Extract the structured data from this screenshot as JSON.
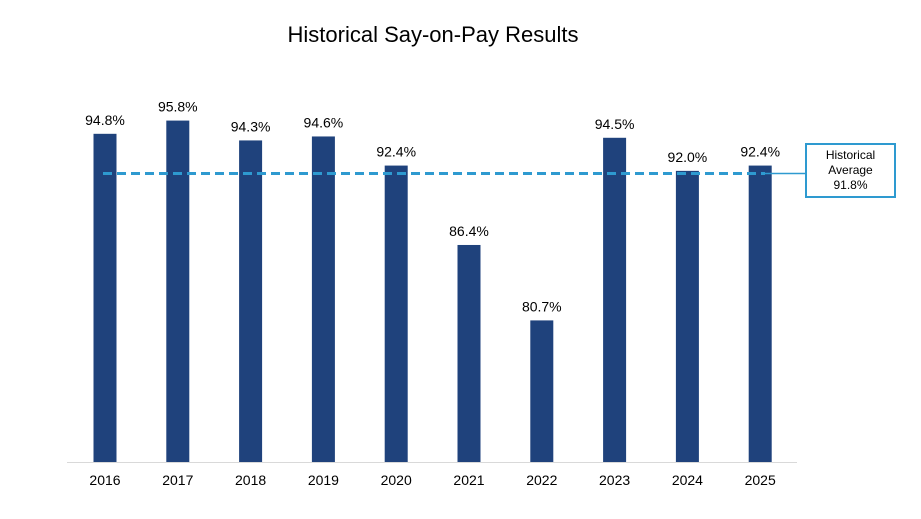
{
  "chart_data": {
    "type": "bar",
    "title": "Historical Say-on-Pay Results",
    "xlabel": "",
    "ylabel": "",
    "categories": [
      "2016",
      "2017",
      "2018",
      "2019",
      "2020",
      "2021",
      "2022",
      "2023",
      "2024",
      "2025"
    ],
    "values": [
      94.8,
      95.8,
      94.3,
      94.6,
      92.4,
      86.4,
      80.7,
      94.5,
      92.0,
      92.4
    ],
    "value_labels": [
      "94.8%",
      "95.8%",
      "94.3%",
      "94.6%",
      "92.4%",
      "86.4%",
      "80.7%",
      "94.5%",
      "92.0%",
      "92.4%"
    ],
    "ylim": [
      70,
      100
    ],
    "grid": false,
    "y_axis_visible": false,
    "reference_line": {
      "label": "Historical Average",
      "value": 91.8,
      "value_label": "91.8%",
      "style": "dashed"
    }
  },
  "annotation": {
    "line1": "Historical",
    "line2": "Average",
    "line3": "91.8%"
  },
  "colors": {
    "bar": "#1f427c",
    "average_line": "#2e9ad0",
    "axis": "#d9d9d9"
  }
}
